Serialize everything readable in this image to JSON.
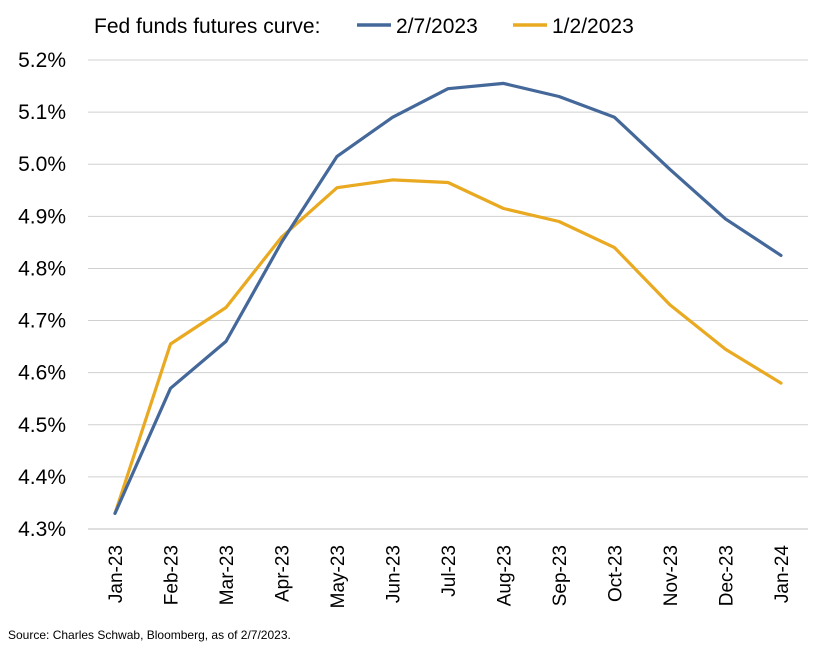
{
  "chart_data": {
    "type": "line",
    "legend_title": "Fed funds futures curve:",
    "legend_position": "top",
    "categories": [
      "Jan-23",
      "Feb-23",
      "Mar-23",
      "Apr-23",
      "May-23",
      "Jun-23",
      "Jul-23",
      "Aug-23",
      "Sep-23",
      "Oct-23",
      "Nov-23",
      "Dec-23",
      "Jan-24"
    ],
    "series": [
      {
        "name": "2/7/2023",
        "color": "#44689a",
        "values": [
          4.33,
          4.57,
          4.66,
          4.85,
          5.015,
          5.09,
          5.145,
          5.155,
          5.13,
          5.09,
          4.99,
          4.895,
          4.825
        ]
      },
      {
        "name": "1/2/2023",
        "color": "#e9a920",
        "values": [
          4.33,
          4.655,
          4.725,
          4.86,
          4.955,
          4.97,
          4.965,
          4.915,
          4.89,
          4.84,
          4.73,
          4.645,
          4.58
        ]
      }
    ],
    "y_ticks": [
      "4.3%",
      "4.4%",
      "4.5%",
      "4.6%",
      "4.7%",
      "4.8%",
      "4.9%",
      "5.0%",
      "5.1%",
      "5.2%"
    ],
    "ylim": [
      4.3,
      5.2
    ],
    "grid": "horizontal",
    "xlabel": "",
    "ylabel": ""
  },
  "source_note": "Source: Charles Schwab, Bloomberg, as of 2/7/2023."
}
